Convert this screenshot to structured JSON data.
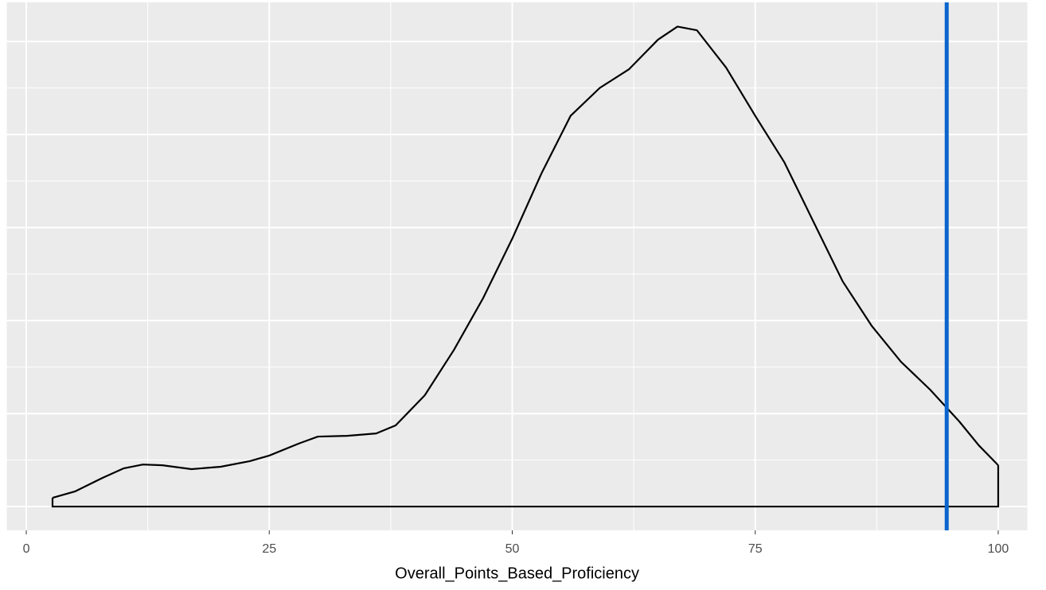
{
  "chart_data": {
    "type": "density",
    "x_label": "Overall_Points_Based_Proficiency",
    "x": [
      2.7,
      5,
      8,
      10,
      12,
      14,
      17,
      20,
      23,
      25,
      28,
      30,
      33,
      36,
      38,
      41,
      44,
      47,
      50,
      53,
      56,
      59,
      62,
      65,
      67,
      69,
      72,
      75,
      78,
      81,
      84,
      87,
      90,
      93,
      96,
      98,
      100
    ],
    "values": [
      0.00047,
      0.00081,
      0.00158,
      0.00205,
      0.00226,
      0.00222,
      0.00201,
      0.00214,
      0.00244,
      0.00274,
      0.00338,
      0.00376,
      0.0038,
      0.00393,
      0.00436,
      0.00598,
      0.00842,
      0.0112,
      0.0144,
      0.0179,
      0.021,
      0.0225,
      0.0235,
      0.0251,
      0.0258,
      0.0256,
      0.0236,
      0.021,
      0.0185,
      0.0153,
      0.0121,
      0.0097,
      0.00778,
      0.00628,
      0.00457,
      0.00329,
      0.00222
    ],
    "color": "#000000",
    "xlim": [
      -2,
      103
    ],
    "xticks": [
      0,
      25,
      50,
      75,
      100
    ],
    "ylim": [
      -0.00128,
      0.0271
    ],
    "yticks": [
      0,
      0.005,
      0.01,
      0.015,
      0.02,
      0.025
    ],
    "grid": true,
    "vline": {
      "x": 94.7,
      "color": "#0a66cc"
    }
  }
}
